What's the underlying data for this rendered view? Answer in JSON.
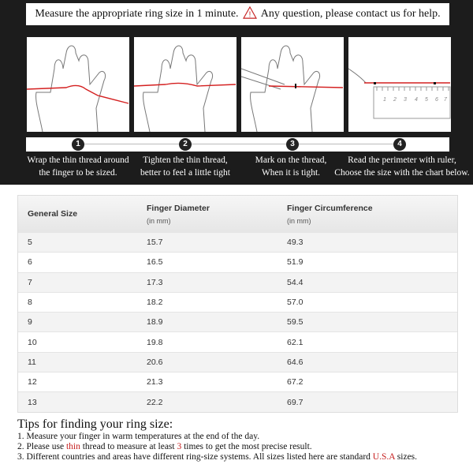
{
  "header": {
    "text_before": "Measure the appropriate ring size in 1 minute.",
    "warning_icon": "warning-triangle-icon",
    "text_after": "Any question, please contact us for help."
  },
  "steps": [
    {
      "number": "1",
      "line1": "Wrap the thin thread around",
      "line2": "the finger to be sized."
    },
    {
      "number": "2",
      "line1": "Tighten the thin thread,",
      "line2": "better to feel a little tight"
    },
    {
      "number": "3",
      "line1": "Mark on the thread,",
      "line2": "When it is tight."
    },
    {
      "number": "4",
      "line1": "Read the perimeter with ruler,",
      "line2": "Choose the size with the chart below."
    }
  ],
  "ruler_ticks": [
    "1",
    "2",
    "3",
    "4",
    "5",
    "6",
    "7"
  ],
  "table": {
    "headers": [
      {
        "title": "General Size",
        "sub": ""
      },
      {
        "title": "Finger Diameter",
        "sub": "(in mm)"
      },
      {
        "title": "Finger Circumference",
        "sub": "(in mm)"
      }
    ],
    "rows": [
      [
        "5",
        "15.7",
        "49.3"
      ],
      [
        "6",
        "16.5",
        "51.9"
      ],
      [
        "7",
        "17.3",
        "54.4"
      ],
      [
        "8",
        "18.2",
        "57.0"
      ],
      [
        "9",
        "18.9",
        "59.5"
      ],
      [
        "10",
        "19.8",
        "62.1"
      ],
      [
        "11",
        "20.6",
        "64.6"
      ],
      [
        "12",
        "21.3",
        "67.2"
      ],
      [
        "13",
        "22.2",
        "69.7"
      ]
    ]
  },
  "tips": {
    "title": "Tips for finding your ring size:",
    "tip1": "1. Measure your finger in warm temperatures at the end of the day.",
    "tip2": {
      "a": "2. Please use ",
      "b": "thin",
      "c": " thread to measure at least ",
      "d": "3",
      "e": " times to get the most precise result."
    },
    "tip3": {
      "a": "3. Different countries and areas have different ring-size systems. All sizes listed here are standard ",
      "b": "U.S.A",
      "c": " sizes."
    }
  },
  "colors": {
    "accent_red": "#c62020",
    "background_dark": "#1c1c1c"
  }
}
